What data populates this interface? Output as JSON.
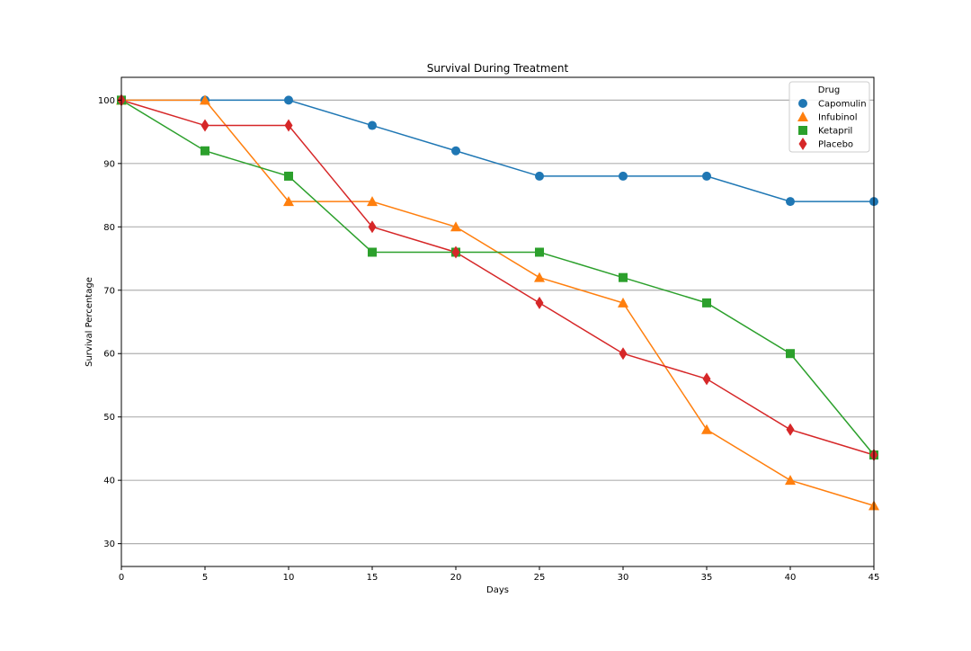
{
  "chart_data": {
    "type": "line",
    "title": "Survival During Treatment",
    "xlabel": "Days",
    "ylabel": "Survival Percentage",
    "xlim": [
      0,
      45
    ],
    "ylim": [
      26.4,
      103.6
    ],
    "x_ticks": [
      0,
      5,
      10,
      15,
      20,
      25,
      30,
      35,
      40,
      45
    ],
    "y_ticks": [
      30,
      40,
      50,
      60,
      70,
      80,
      90,
      100
    ],
    "grid": "horizontal",
    "legend": {
      "title": "Drug",
      "placement": "top-right"
    },
    "x": [
      0,
      5,
      10,
      15,
      20,
      25,
      30,
      35,
      40,
      45
    ],
    "series": [
      {
        "name": "Capomulin",
        "color": "#1f77b4",
        "marker": "circle",
        "values": [
          100,
          100,
          100,
          96,
          92,
          88,
          88,
          88,
          84,
          84
        ]
      },
      {
        "name": "Infubinol",
        "color": "#ff7f0e",
        "marker": "triangle",
        "values": [
          100,
          100,
          84,
          84,
          80,
          72,
          68,
          48,
          40,
          36
        ]
      },
      {
        "name": "Ketapril",
        "color": "#2ca02c",
        "marker": "square",
        "values": [
          100,
          92,
          88,
          76,
          76,
          76,
          72,
          68,
          60,
          44
        ]
      },
      {
        "name": "Placebo",
        "color": "#d62728",
        "marker": "diamond",
        "values": [
          100,
          96,
          96,
          80,
          76,
          68,
          60,
          56,
          48,
          44
        ]
      }
    ]
  }
}
